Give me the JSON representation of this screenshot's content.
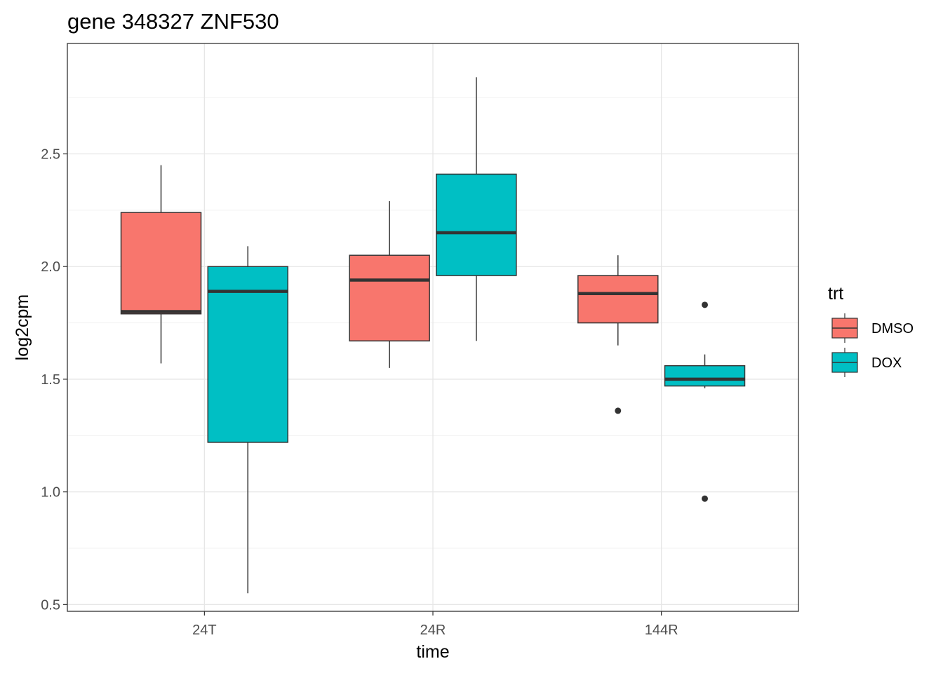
{
  "chart_data": {
    "type": "boxplot",
    "title": "gene 348327 ZNF530",
    "xlabel": "time",
    "ylabel": "log2cpm",
    "categories": [
      "24T",
      "24R",
      "144R"
    ],
    "ylim": [
      0.47,
      2.99
    ],
    "yticks": [
      0.5,
      1.0,
      1.5,
      2.0,
      2.5
    ],
    "ytick_labels": [
      "0.5",
      "1.0",
      "1.5",
      "2.0",
      "2.5"
    ],
    "grid": true,
    "legend": {
      "title": "trt",
      "position": "right"
    },
    "series": [
      {
        "name": "DMSO",
        "color": "#F8766D",
        "boxes": [
          {
            "category": "24T",
            "whisker_low": 1.57,
            "q1": 1.79,
            "median": 1.8,
            "q3": 2.24,
            "whisker_high": 2.45,
            "outliers": []
          },
          {
            "category": "24R",
            "whisker_low": 1.55,
            "q1": 1.67,
            "median": 1.94,
            "q3": 2.05,
            "whisker_high": 2.29,
            "outliers": []
          },
          {
            "category": "144R",
            "whisker_low": 1.65,
            "q1": 1.75,
            "median": 1.88,
            "q3": 1.96,
            "whisker_high": 2.05,
            "outliers": [
              1.36
            ]
          }
        ]
      },
      {
        "name": "DOX",
        "color": "#00BFC4",
        "boxes": [
          {
            "category": "24T",
            "whisker_low": 0.55,
            "q1": 1.22,
            "median": 1.89,
            "q3": 2.0,
            "whisker_high": 2.09,
            "outliers": []
          },
          {
            "category": "24R",
            "whisker_low": 1.67,
            "q1": 1.96,
            "median": 2.15,
            "q3": 2.41,
            "whisker_high": 2.84,
            "outliers": []
          },
          {
            "category": "144R",
            "whisker_low": 1.46,
            "q1": 1.47,
            "median": 1.5,
            "q3": 1.56,
            "whisker_high": 1.61,
            "outliers": [
              1.83,
              0.97
            ]
          }
        ]
      }
    ]
  }
}
